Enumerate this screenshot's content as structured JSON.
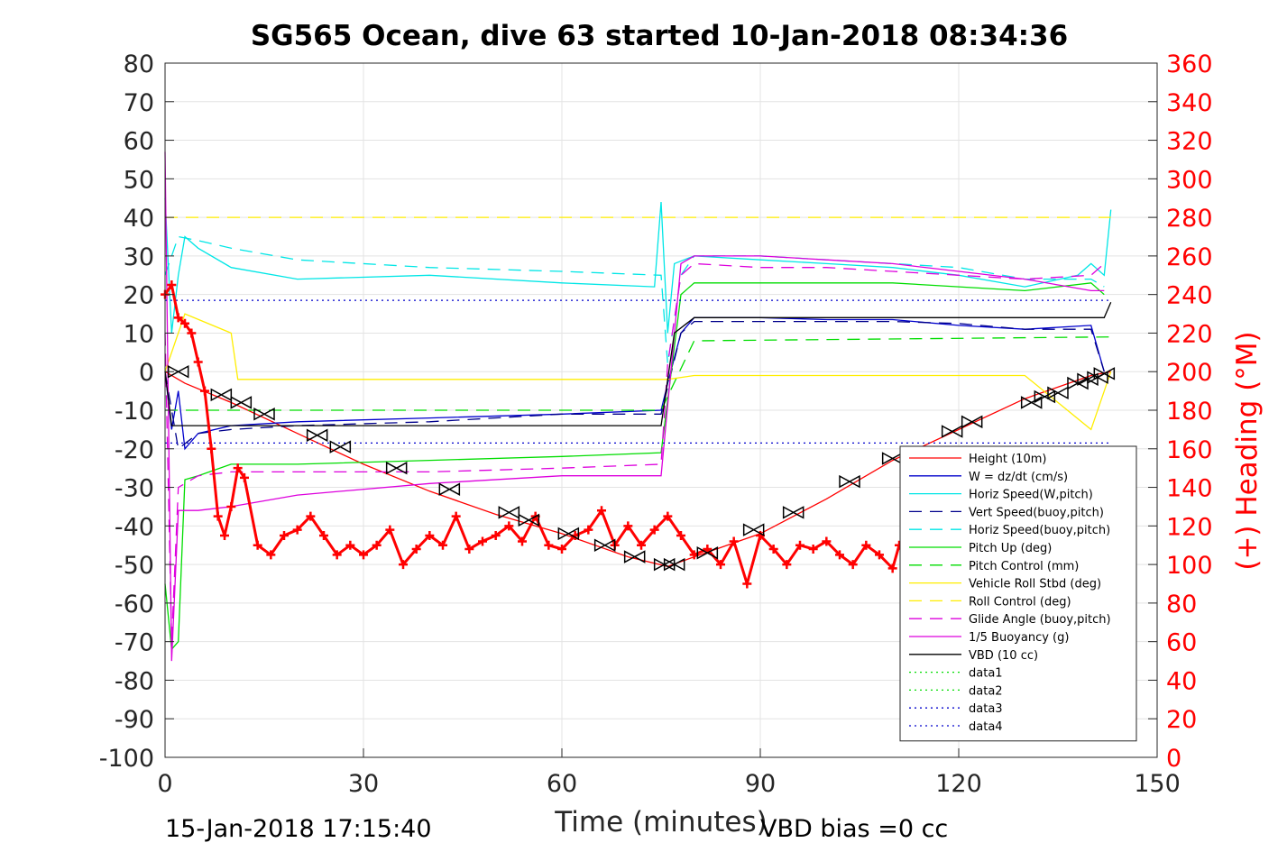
{
  "chart_data": {
    "type": "line",
    "title": "SG565 Ocean, dive 63 started 10-Jan-2018 08:34:36",
    "xlabel": "Time (minutes)",
    "ylabel_right": "(+) Heading (°M)",
    "xlim": [
      0,
      150
    ],
    "ylim": [
      -100,
      80
    ],
    "ylim_right": [
      0,
      360
    ],
    "x_ticks": [
      "0",
      "30",
      "60",
      "90",
      "120",
      "150"
    ],
    "y_ticks": [
      "80",
      "70",
      "60",
      "50",
      "40",
      "30",
      "20",
      "10",
      "0",
      "-10",
      "-20",
      "-30",
      "-40",
      "-50",
      "-60",
      "-70",
      "-80",
      "-90",
      "-100"
    ],
    "y_ticks_right": [
      "360",
      "340",
      "320",
      "300",
      "280",
      "260",
      "240",
      "220",
      "200",
      "180",
      "160",
      "140",
      "120",
      "100",
      "80",
      "60",
      "40",
      "20",
      "0"
    ],
    "grid": true,
    "legend_position": "bottom-right",
    "footer_left": "15-Jan-2018 17:15:40",
    "footer_right": "VBD bias =0 cc",
    "colors": {
      "heading": "#ff0000",
      "right_axis": "#ff0000"
    },
    "series": [
      {
        "name": "Height (10m)",
        "color": "#ff0000",
        "style": "solid",
        "x": [
          0,
          3,
          10,
          20,
          30,
          40,
          50,
          60,
          70,
          76,
          80,
          90,
          100,
          110,
          120,
          130,
          140,
          143
        ],
        "y": [
          0,
          -3,
          -8,
          -16,
          -24,
          -31,
          -37,
          -42,
          -48,
          -50.5,
          -48,
          -42,
          -33,
          -23,
          -15,
          -7,
          -1,
          0
        ]
      },
      {
        "name": "W = dz/dt (cm/s)",
        "color": "#0000cc",
        "style": "solid",
        "x": [
          0,
          1,
          2,
          3,
          5,
          10,
          20,
          40,
          60,
          75,
          76,
          78,
          80,
          90,
          100,
          110,
          120,
          130,
          140,
          142
        ],
        "y": [
          0,
          -15,
          -5,
          -20,
          -16,
          -14,
          -13,
          -12,
          -11,
          -10,
          -3,
          10,
          14,
          14,
          13.5,
          13.5,
          12,
          11,
          12,
          0
        ]
      },
      {
        "name": "Horiz Speed(W,pitch)",
        "color": "#00e6e6",
        "style": "solid",
        "x": [
          0,
          1,
          2,
          3,
          5,
          10,
          20,
          40,
          60,
          74,
          75,
          76,
          77,
          80,
          90,
          100,
          110,
          120,
          130,
          138,
          140,
          142,
          143
        ],
        "y": [
          45,
          10,
          25,
          35,
          32,
          27,
          24,
          25,
          23,
          22,
          44,
          10,
          28,
          30,
          29,
          28,
          27,
          25,
          22,
          25,
          28,
          25,
          42
        ]
      },
      {
        "name": "Vert Speed(buoy,pitch)",
        "color": "#00008b",
        "style": "dashed",
        "x": [
          0,
          2,
          5,
          10,
          20,
          40,
          60,
          75,
          78,
          80,
          90,
          100,
          110,
          120,
          130,
          140,
          142
        ],
        "y": [
          0,
          -20,
          -16,
          -15,
          -14,
          -13,
          -11,
          -11,
          10,
          13,
          13,
          13,
          13,
          12.5,
          11,
          11,
          0
        ]
      },
      {
        "name": "Horiz Speed(buoy,pitch)",
        "color": "#00e6e6",
        "style": "dashed",
        "x": [
          0,
          2,
          5,
          10,
          20,
          40,
          60,
          75,
          76,
          78,
          80,
          90,
          100,
          110,
          120,
          130,
          140,
          142
        ],
        "y": [
          25,
          35,
          34,
          32,
          29,
          27,
          26,
          25,
          2,
          25,
          30,
          30,
          29,
          28,
          27,
          24,
          24,
          22
        ]
      },
      {
        "name": "Pitch Up (deg)",
        "color": "#00dd00",
        "style": "solid",
        "x": [
          0,
          1,
          2,
          3,
          5,
          10,
          20,
          40,
          60,
          75,
          78,
          80,
          90,
          100,
          110,
          120,
          130,
          140,
          142
        ],
        "y": [
          -55,
          -72,
          -70,
          -28,
          -27,
          -24,
          -24,
          -23,
          -22,
          -21,
          20,
          23,
          23,
          23,
          23,
          22,
          21,
          23,
          20
        ]
      },
      {
        "name": "Pitch Control (mm)",
        "color": "#00dd00",
        "style": "dashed",
        "x": [
          0,
          75,
          80,
          143
        ],
        "y": [
          -10,
          -10,
          8,
          9
        ]
      },
      {
        "name": "Vehicle Roll Stbd (deg)",
        "color": "#ffee00",
        "style": "solid",
        "x": [
          0,
          3,
          10,
          11,
          12,
          20,
          30,
          40,
          50,
          60,
          70,
          76,
          80,
          90,
          100,
          110,
          120,
          130,
          140,
          143
        ],
        "y": [
          0,
          15,
          10,
          -2,
          -2,
          -2,
          -2,
          -2,
          -2,
          -2,
          -2,
          -2,
          -1,
          -1,
          -1,
          -1,
          -1,
          -1,
          -15,
          0
        ]
      },
      {
        "name": "Roll Control (deg)",
        "color": "#ffee00",
        "style": "dashed",
        "x": [
          0,
          3,
          143
        ],
        "y": [
          40,
          40,
          40
        ]
      },
      {
        "name": "Glide Angle (buoy,pitch)",
        "color": "#dd00dd",
        "style": "dashed",
        "x": [
          0,
          1,
          2,
          5,
          10,
          20,
          40,
          60,
          75,
          76,
          78,
          80,
          90,
          100,
          110,
          120,
          130,
          140,
          142
        ],
        "y": [
          10,
          -70,
          -30,
          -27,
          -26,
          -26,
          -26,
          -25,
          -24,
          2,
          25,
          28,
          27,
          27,
          26,
          25,
          24,
          25,
          28
        ]
      },
      {
        "name": "1/5 Buoyancy (g)",
        "color": "#dd00dd",
        "style": "solid",
        "x": [
          0,
          1,
          2,
          5,
          10,
          20,
          40,
          60,
          75,
          78,
          80,
          90,
          100,
          110,
          120,
          130,
          140,
          142
        ],
        "y": [
          57,
          -75,
          -36,
          -36,
          -35,
          -32,
          -29,
          -27,
          -27,
          28,
          30,
          30,
          29,
          28,
          26,
          24,
          21,
          21
        ]
      },
      {
        "name": "VBD (10 cc)",
        "color": "#000000",
        "style": "solid",
        "x": [
          0,
          1,
          2,
          75,
          77,
          80,
          142,
          143
        ],
        "y": [
          0,
          -14,
          -14,
          -14,
          10,
          14,
          14,
          18
        ]
      },
      {
        "name": "data1",
        "color": "#00dd00",
        "style": "dotted",
        "x": [],
        "y": []
      },
      {
        "name": "data2",
        "color": "#00dd00",
        "style": "dotted",
        "x": [],
        "y": []
      },
      {
        "name": "data3",
        "color": "#0000cc",
        "style": "dotted",
        "x": [
          0,
          143
        ],
        "y": [
          18.5,
          18.5
        ]
      },
      {
        "name": "data4",
        "color": "#0000cc",
        "style": "dotted",
        "x": [
          0,
          143
        ],
        "y": [
          -18.5,
          -18.5
        ]
      }
    ],
    "heading_series": {
      "axis": "right",
      "color": "#ff0000",
      "marker": "+",
      "x": [
        0,
        1,
        2,
        3,
        4,
        5,
        6,
        7,
        8,
        9,
        10,
        11,
        12,
        14,
        16,
        18,
        20,
        22,
        24,
        26,
        28,
        30,
        32,
        34,
        36,
        38,
        40,
        42,
        44,
        46,
        48,
        50,
        52,
        54,
        56,
        58,
        60,
        62,
        64,
        66,
        68,
        70,
        72,
        74,
        76,
        78,
        80,
        82,
        84,
        86,
        88,
        90,
        92,
        94,
        96,
        98,
        100,
        102,
        104,
        106,
        108,
        110,
        111
      ],
      "y": [
        240,
        245,
        228,
        225,
        220,
        205,
        190,
        160,
        125,
        115,
        130,
        150,
        145,
        110,
        105,
        115,
        118,
        125,
        115,
        105,
        110,
        105,
        110,
        118,
        100,
        108,
        115,
        110,
        125,
        108,
        112,
        115,
        120,
        112,
        125,
        110,
        108,
        115,
        118,
        128,
        110,
        120,
        110,
        118,
        125,
        115,
        105,
        108,
        100,
        112,
        90,
        115,
        108,
        100,
        110,
        108,
        112,
        105,
        100,
        110,
        105,
        98,
        110
      ]
    },
    "markers": {
      "style": "triangles",
      "color": "#000000",
      "x": [
        2,
        8.5,
        11.5,
        15,
        23,
        26.5,
        35,
        43,
        52,
        55,
        61,
        66.5,
        71,
        75.5,
        77,
        82,
        89,
        95,
        103.5,
        110,
        119,
        122,
        131,
        133,
        135,
        138,
        139.5,
        141,
        142
      ],
      "y": [
        0,
        -6,
        -8,
        -11,
        -16.5,
        -19.5,
        -25,
        -30.5,
        -36.5,
        -38.5,
        -42,
        -45,
        -48,
        -50,
        -50,
        -47,
        -41,
        -36.5,
        -28.5,
        -22.5,
        -15.5,
        -13,
        -8,
        -6.5,
        -5.5,
        -3,
        -2,
        -1.5,
        -0.5
      ]
    }
  }
}
